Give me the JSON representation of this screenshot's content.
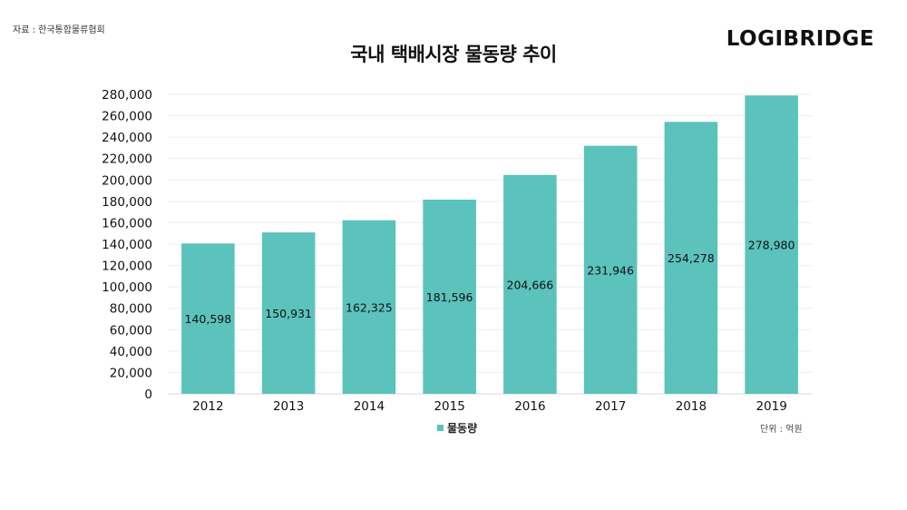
{
  "header": {
    "source": "자료 : 한국통합물류협회",
    "brand": "LOGIBRIDGE"
  },
  "chart_data": {
    "type": "bar",
    "title": "국내 택배시장 물동량 추이",
    "categories": [
      "2012",
      "2013",
      "2014",
      "2015",
      "2016",
      "2017",
      "2018",
      "2019"
    ],
    "series": [
      {
        "name": "물동량",
        "values": [
          140598,
          150931,
          162325,
          181596,
          204666,
          231946,
          254278,
          278980
        ],
        "labels": [
          "140,598",
          "150,931",
          "162,325",
          "181,596",
          "204,666",
          "231,946",
          "254,278",
          "278,980"
        ],
        "color": "#5bc2bc"
      }
    ],
    "ylim": [
      0,
      280000
    ],
    "yticks": [
      0,
      20000,
      40000,
      60000,
      80000,
      100000,
      120000,
      140000,
      160000,
      180000,
      200000,
      220000,
      240000,
      260000,
      280000
    ],
    "ytick_labels": [
      "0",
      "20,000",
      "40,000",
      "60,000",
      "80,000",
      "100,000",
      "120,000",
      "140,000",
      "160,000",
      "180,000",
      "200,000",
      "220,000",
      "240,000",
      "260,000",
      "280,000"
    ],
    "xlabel": "",
    "ylabel": "",
    "grid": true,
    "legend": "bottom-center",
    "unit": "단위 : 억원"
  }
}
